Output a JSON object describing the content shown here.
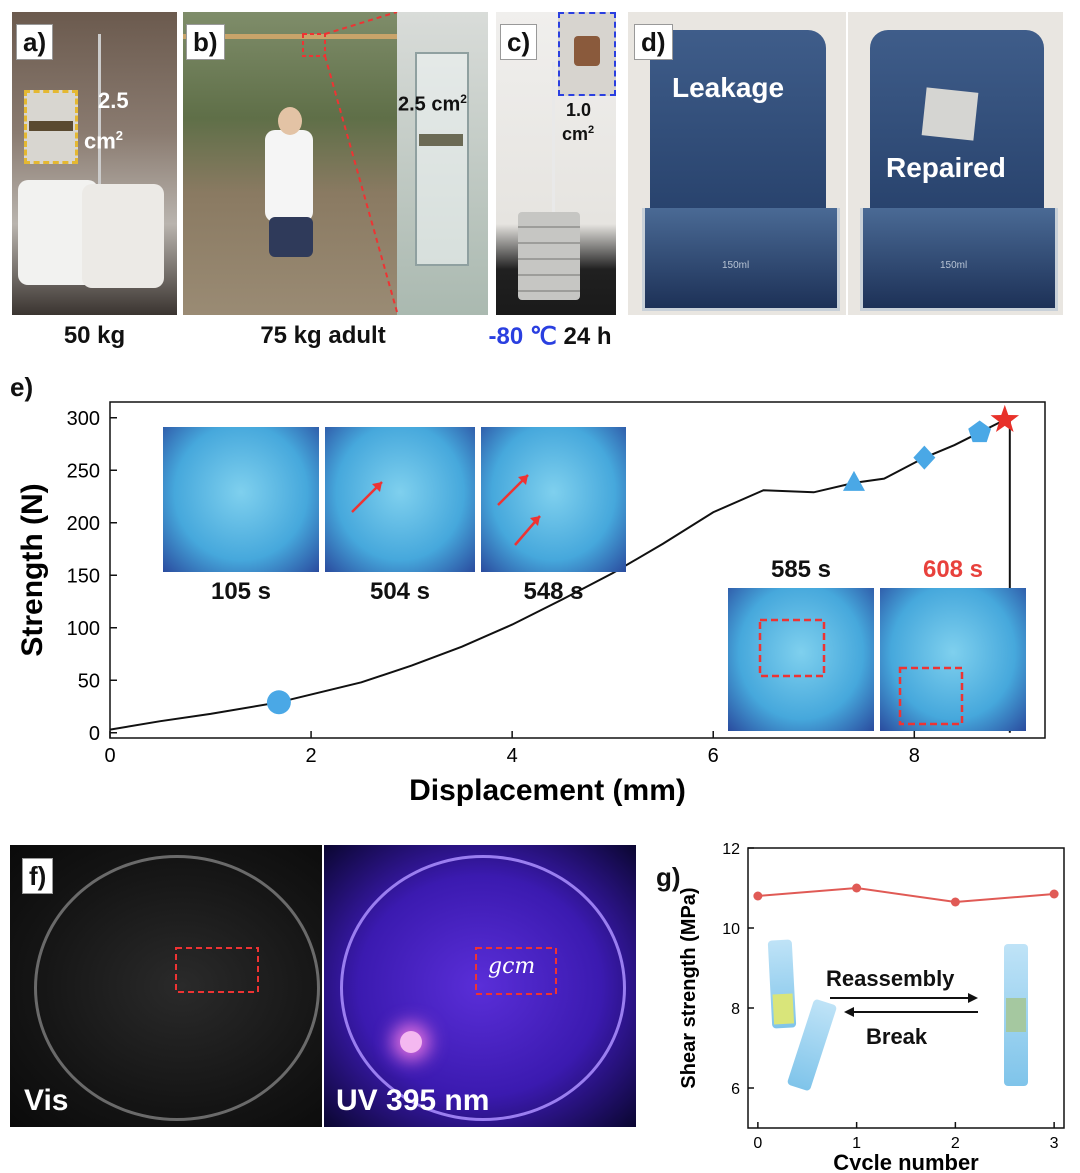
{
  "panel_a": {
    "label": "a)",
    "area_line1": "2.5",
    "area_line2": "cm",
    "area_sup": "2",
    "caption": "50 kg"
  },
  "panel_b": {
    "label": "b)",
    "area": "2.5 cm",
    "area_sup": "2",
    "caption": "75 kg adult"
  },
  "panel_c": {
    "label": "c)",
    "area_line1": "1.0",
    "area_line2": "cm",
    "area_sup": "2",
    "caption_temp": "-80 ℃",
    "caption_time": "24 h"
  },
  "panel_d": {
    "label": "d)",
    "left_text": "Leakage",
    "right_text": "Repaired",
    "beaker_mark": "150ml"
  },
  "panel_e": {
    "label": "e)",
    "inset_times": [
      "105 s",
      "504 s",
      "548 s",
      "585 s",
      "608 s"
    ],
    "inset_fail_color": "#e8413c",
    "marker_color": "#4aa8e6",
    "star_color": "#e8312a"
  },
  "panel_f": {
    "label": "f)",
    "left_text": "Vis",
    "right_text": "UV 395 nm",
    "uv_writing": "gcm"
  },
  "panel_g": {
    "label": "g)",
    "arrow_top": "Reassembly",
    "arrow_bottom": "Break"
  },
  "chart_data": [
    {
      "type": "line",
      "panel": "e",
      "xlabel": "Displacement (mm)",
      "ylabel": "Strength (N)",
      "xlim": [
        0,
        9.3
      ],
      "ylim": [
        -5,
        315
      ],
      "xticks": [
        0,
        2,
        4,
        6,
        8
      ],
      "yticks": [
        0,
        50,
        100,
        150,
        200,
        250,
        300
      ],
      "series": [
        {
          "x": [
            0,
            0.5,
            1.0,
            1.68,
            2.5,
            3.0,
            3.5,
            4.0,
            4.5,
            5.0,
            5.5,
            6.0,
            6.5,
            7.0,
            7.4,
            7.7,
            8.1,
            8.4,
            8.65,
            8.9,
            8.95,
            8.95
          ],
          "y": [
            3,
            11,
            18,
            29,
            48,
            64,
            82,
            103,
            127,
            152,
            180,
            210,
            231,
            229,
            238,
            242,
            262,
            274,
            286,
            298,
            298,
            0
          ]
        }
      ],
      "markers": [
        {
          "shape": "circle",
          "x": 1.68,
          "y": 29
        },
        {
          "shape": "triangle",
          "x": 7.4,
          "y": 238
        },
        {
          "shape": "diamond",
          "x": 8.1,
          "y": 262
        },
        {
          "shape": "pentagon",
          "x": 8.65,
          "y": 286
        },
        {
          "shape": "star",
          "x": 8.9,
          "y": 298
        }
      ],
      "grid": false
    },
    {
      "type": "line",
      "panel": "g",
      "xlabel": "Cycle number",
      "ylabel": "Shear strength (MPa)",
      "xlim": [
        -0.1,
        3.1
      ],
      "ylim": [
        5,
        12
      ],
      "xticks": [
        0,
        1,
        2,
        3
      ],
      "yticks": [
        6,
        8,
        10,
        12
      ],
      "series": [
        {
          "x": [
            0,
            1,
            2,
            3
          ],
          "y": [
            10.8,
            11.0,
            10.65,
            10.85
          ],
          "color": "#e05a55"
        }
      ],
      "grid": false
    }
  ]
}
